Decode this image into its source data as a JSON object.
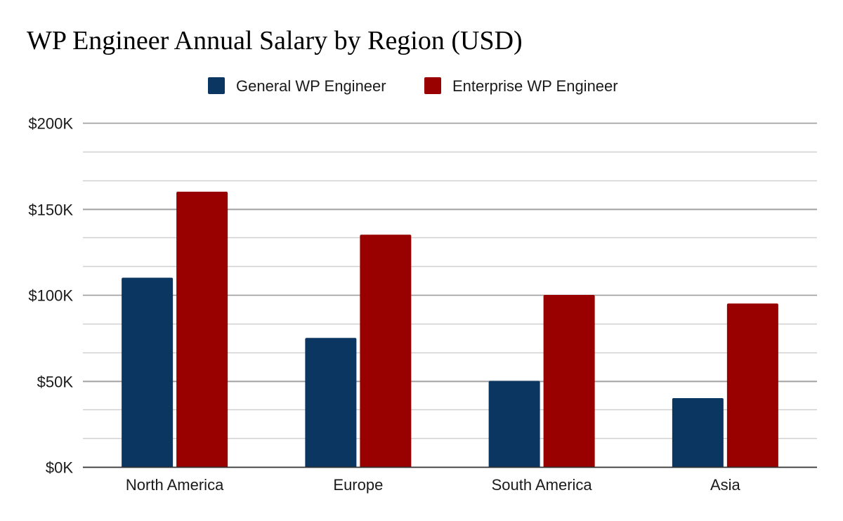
{
  "chart_data": {
    "type": "bar",
    "title": "WP Engineer Annual Salary by Region (USD)",
    "categories": [
      "North America",
      "Europe",
      "South America",
      "Asia"
    ],
    "series": [
      {
        "name": "General WP Engineer",
        "color": "#0b3661",
        "values": [
          110000,
          75000,
          50000,
          40000
        ]
      },
      {
        "name": "Enterprise WP Engineer",
        "color": "#990000",
        "values": [
          160000,
          135000,
          100000,
          95000
        ]
      }
    ],
    "ylim": [
      0,
      200000
    ],
    "yticks": [
      {
        "value": 0,
        "label": "$0K"
      },
      {
        "value": 50000,
        "label": "$50K"
      },
      {
        "value": 100000,
        "label": "$100K"
      },
      {
        "value": 150000,
        "label": "$150K"
      },
      {
        "value": 200000,
        "label": "$200K"
      }
    ],
    "minor_grid_step": 16666.67,
    "xlabel": "",
    "ylabel": "",
    "legend": "top-center",
    "grid": true
  }
}
